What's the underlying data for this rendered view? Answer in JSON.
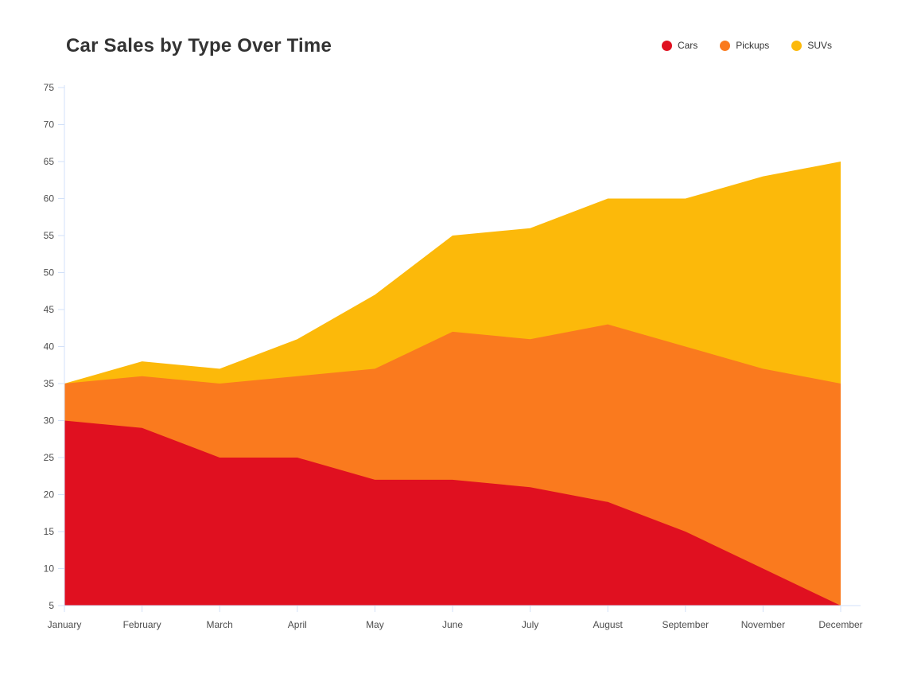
{
  "page": {
    "background": "#ffffff"
  },
  "header": {
    "title": "Car Sales by Type Over Time"
  },
  "chart_data": {
    "type": "area",
    "stacked": true,
    "title": "Car Sales by Type Over Time",
    "categories": [
      "January",
      "February",
      "March",
      "April",
      "May",
      "June",
      "July",
      "August",
      "September",
      "November",
      "December"
    ],
    "series": [
      {
        "name": "Cars",
        "color": "#e01020",
        "values": [
          30,
          29,
          25,
          25,
          22,
          22,
          21,
          19,
          15,
          10,
          5
        ]
      },
      {
        "name": "Pickups",
        "color": "#fa7a1e",
        "values": [
          5,
          7,
          10,
          11,
          15,
          20,
          20,
          24,
          25,
          27,
          30
        ]
      },
      {
        "name": "SUVs",
        "color": "#fcb90a",
        "values": [
          0,
          2,
          2,
          5,
          10,
          13,
          15,
          17,
          20,
          26,
          30
        ]
      }
    ],
    "stacked_totals": [
      35,
      38,
      37,
      41,
      47,
      55,
      56,
      60,
      60,
      63,
      65
    ],
    "xlabel": "",
    "ylabel": "",
    "ylim": [
      5,
      75
    ],
    "ytick_step": 5,
    "grid": false,
    "legend_position": "top-right",
    "legend_labels": [
      "Cars",
      "Pickups",
      "SUVs"
    ],
    "axis_color": "#d3e1f8",
    "tick_label_color": "#4d4d4d",
    "title_color": "#333333"
  }
}
